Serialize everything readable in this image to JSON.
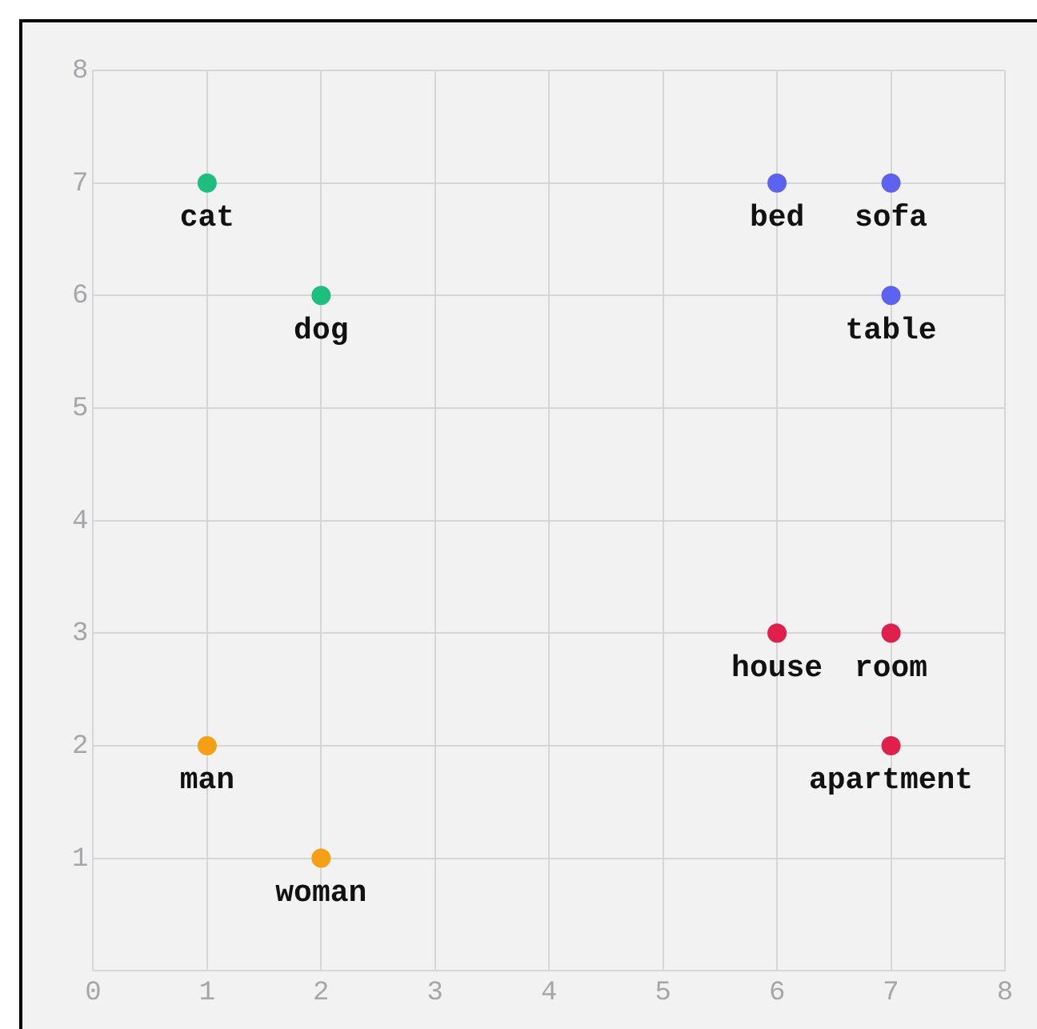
{
  "chart_data": {
    "type": "scatter",
    "xlim": [
      0,
      8
    ],
    "ylim": [
      0,
      8
    ],
    "xticks": [
      0,
      1,
      2,
      3,
      4,
      5,
      6,
      7,
      8
    ],
    "yticks": [
      1,
      2,
      3,
      4,
      5,
      6,
      7,
      8
    ],
    "grid": true,
    "legend": false,
    "marker": "circle",
    "series": [
      {
        "color": "#1dbf7f",
        "x": [
          1,
          2
        ],
        "values": [
          7,
          6
        ]
      },
      {
        "color": "#5b63f0",
        "x": [
          6,
          7,
          7
        ],
        "values": [
          7,
          7,
          6
        ]
      },
      {
        "color": "#e0204a",
        "x": [
          6,
          7,
          7
        ],
        "values": [
          3,
          3,
          2
        ]
      },
      {
        "color": "#f5a014",
        "x": [
          1,
          2
        ],
        "values": [
          2,
          1
        ]
      }
    ],
    "annotations": [
      {
        "text": "cat",
        "x": 1,
        "y": 7
      },
      {
        "text": "dog",
        "x": 2,
        "y": 6
      },
      {
        "text": "bed",
        "x": 6,
        "y": 7
      },
      {
        "text": "sofa",
        "x": 7,
        "y": 7
      },
      {
        "text": "table",
        "x": 7,
        "y": 6
      },
      {
        "text": "house",
        "x": 6,
        "y": 3
      },
      {
        "text": "room",
        "x": 7,
        "y": 3
      },
      {
        "text": "apartment",
        "x": 7,
        "y": 2
      },
      {
        "text": "man",
        "x": 1,
        "y": 2
      },
      {
        "text": "woman",
        "x": 2,
        "y": 1
      }
    ]
  }
}
